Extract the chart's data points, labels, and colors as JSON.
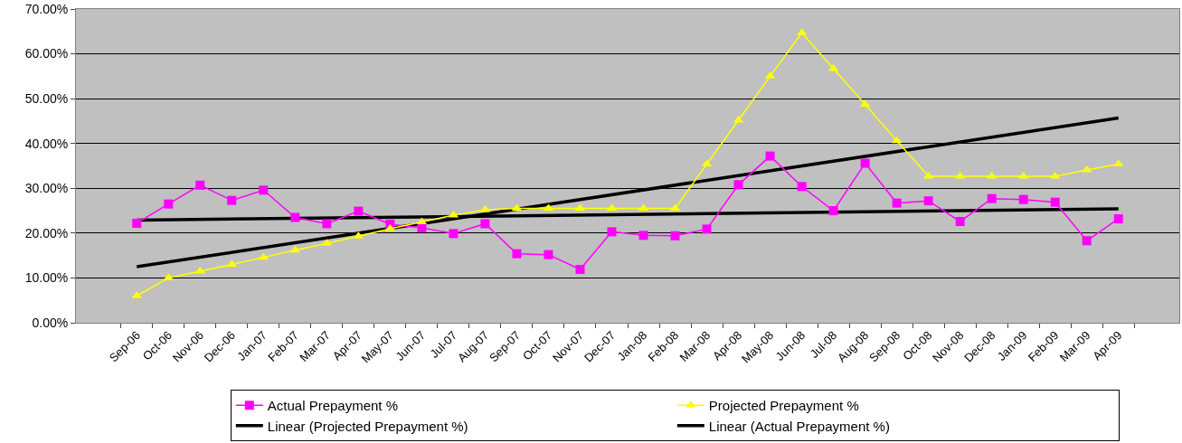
{
  "chart_data": {
    "type": "line",
    "categories": [
      "Sep-06",
      "Oct-06",
      "Nov-06",
      "Dec-06",
      "Jan-07",
      "Feb-07",
      "Mar-07",
      "Apr-07",
      "May-07",
      "Jun-07",
      "Jul-07",
      "Aug-07",
      "Sep-07",
      "Oct-07",
      "Nov-07",
      "Dec-07",
      "Jan-08",
      "Feb-08",
      "Mar-08",
      "Apr-08",
      "May-08",
      "Jun-08",
      "Jul-08",
      "Aug-08",
      "Sep-08",
      "Oct-08",
      "Nov-08",
      "Dec-08",
      "Jan-09",
      "Feb-09",
      "Mar-09",
      "Apr-09"
    ],
    "series": [
      {
        "name": "Actual Prepayment %",
        "color": "#ff00ff",
        "marker": "square",
        "values": [
          22.2,
          26.5,
          30.7,
          27.3,
          29.6,
          23.5,
          22.1,
          24.9,
          22.0,
          21.2,
          19.9,
          22.1,
          15.4,
          15.2,
          11.9,
          20.3,
          19.5,
          19.4,
          20.9,
          30.8,
          37.2,
          30.4,
          25.0,
          35.6,
          26.7,
          27.2,
          22.6,
          27.7,
          27.5,
          26.9,
          18.3,
          23.2
        ]
      },
      {
        "name": "Projected Prepayment %",
        "color": "#ffff00",
        "marker": "triangle",
        "values": [
          6.0,
          10.0,
          11.5,
          13.0,
          14.6,
          16.2,
          17.7,
          19.3,
          21.0,
          22.5,
          24.0,
          25.2,
          25.5,
          25.5,
          25.5,
          25.5,
          25.5,
          25.5,
          35.4,
          45.2,
          55.0,
          64.7,
          56.7,
          48.7,
          40.6,
          32.7,
          32.7,
          32.7,
          32.7,
          32.7,
          34.1,
          35.4
        ]
      },
      {
        "name": "Linear (Projected Prepayment %)",
        "type": "line",
        "color": "#000000",
        "marker": "none",
        "x": [
          "Sep-06",
          "Apr-09"
        ],
        "values": [
          12.5,
          45.7
        ]
      },
      {
        "name": "Linear (Actual Prepayment %)",
        "type": "line",
        "color": "#000000",
        "marker": "none",
        "x": [
          "Sep-06",
          "Apr-09"
        ],
        "values": [
          22.9,
          25.4
        ]
      }
    ],
    "ylim": [
      0,
      70
    ],
    "yticks": [
      {
        "value": 0,
        "label": "0.00%"
      },
      {
        "value": 10,
        "label": "10.00%"
      },
      {
        "value": 20,
        "label": "20.00%"
      },
      {
        "value": 30,
        "label": "30.00%"
      },
      {
        "value": 40,
        "label": "40.00%"
      },
      {
        "value": 50,
        "label": "50.00%"
      },
      {
        "value": 60,
        "label": "60.00%"
      },
      {
        "value": 70,
        "label": "70.00%"
      }
    ],
    "grid": "y",
    "legend": "bottom",
    "line_style": "solid"
  }
}
